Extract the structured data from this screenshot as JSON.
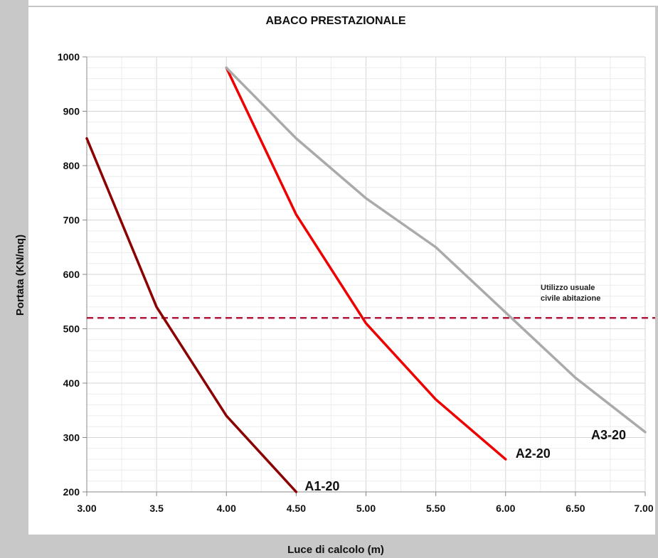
{
  "chart_data": {
    "type": "line",
    "title": "ABACO PRESTAZIONALE",
    "xlabel": "Luce di calcolo (m)",
    "ylabel": "Portata (KN/mq)",
    "xlim": [
      3.0,
      7.0
    ],
    "ylim": [
      200,
      1000
    ],
    "x_ticks": [
      {
        "value": 3.0,
        "label": "3.00"
      },
      {
        "value": 3.5,
        "label": "3.5"
      },
      {
        "value": 4.0,
        "label": "4.00"
      },
      {
        "value": 4.5,
        "label": "4.50"
      },
      {
        "value": 5.0,
        "label": "5.00"
      },
      {
        "value": 5.5,
        "label": "5.50"
      },
      {
        "value": 6.0,
        "label": "6.00"
      },
      {
        "value": 6.5,
        "label": "6.50"
      },
      {
        "value": 7.0,
        "label": "7.00"
      }
    ],
    "y_ticks": [
      {
        "value": 200,
        "label": "200"
      },
      {
        "value": 300,
        "label": "300"
      },
      {
        "value": 400,
        "label": "400"
      },
      {
        "value": 500,
        "label": "500"
      },
      {
        "value": 600,
        "label": "600"
      },
      {
        "value": 700,
        "label": "700"
      },
      {
        "value": 800,
        "label": "800"
      },
      {
        "value": 900,
        "label": "900"
      },
      {
        "value": 1000,
        "label": "1000"
      }
    ],
    "grid": true,
    "series": [
      {
        "name": "A1-20",
        "color": "#8b0000",
        "x": [
          3.0,
          3.5,
          4.0,
          4.5
        ],
        "y": [
          850,
          540,
          340,
          200
        ]
      },
      {
        "name": "A2-20",
        "color": "#ee0000",
        "x": [
          4.0,
          4.5,
          5.0,
          5.5,
          6.0
        ],
        "y": [
          980,
          710,
          510,
          370,
          260
        ]
      },
      {
        "name": "A3-20",
        "color": "#aaaaaa",
        "x": [
          4.0,
          4.5,
          5.0,
          5.5,
          6.0,
          6.5,
          7.0
        ],
        "y": [
          980,
          850,
          740,
          650,
          530,
          410,
          310
        ]
      }
    ],
    "reference_line": {
      "y": 520,
      "color": "#b5163a",
      "label_lines": [
        "Utilizzo usuale",
        "civile abitazione"
      ]
    }
  }
}
